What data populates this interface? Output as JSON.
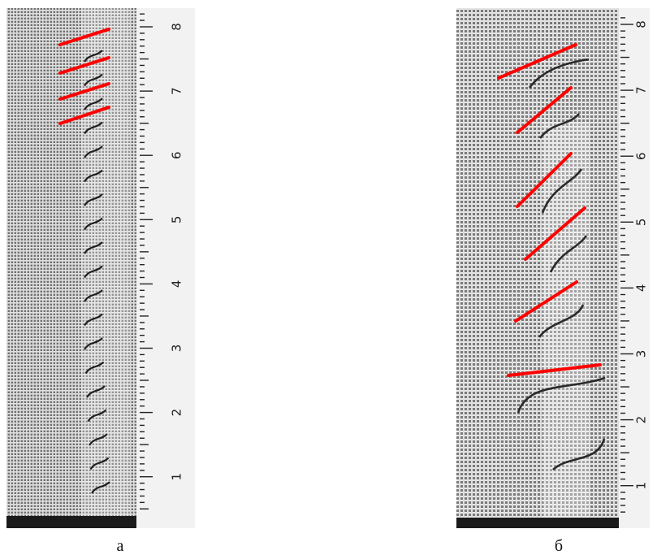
{
  "panels": [
    {
      "label": "а",
      "ruler": [
        1,
        2,
        3,
        4,
        5,
        6,
        7,
        8
      ]
    },
    {
      "label": "б",
      "ruler": [
        1,
        2,
        3,
        4,
        5,
        6,
        7,
        8
      ]
    }
  ]
}
